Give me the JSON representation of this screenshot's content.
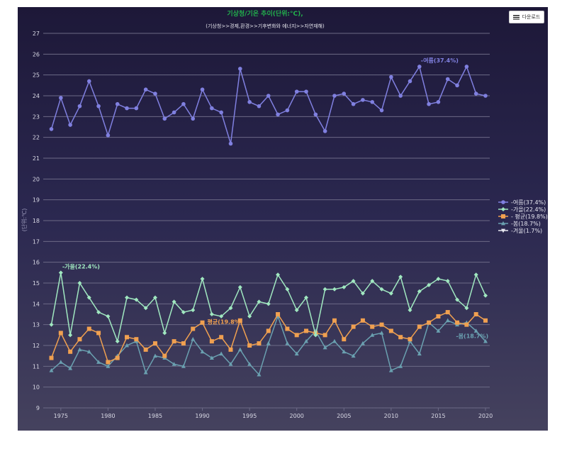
{
  "toolbar": {
    "download_label": "다운로드",
    "download_icon": "menu-icon"
  },
  "chart_data": {
    "type": "line",
    "title": "기상청/기온 추이(단위:°C),",
    "subtitle": "(기상청>>경제,환경>>기후변화와 에너지>>자연재해)",
    "xlabel": "",
    "ylabel": "(단위:℃)",
    "ylim": [
      9,
      27
    ],
    "yticks": [
      "9",
      "10",
      "11",
      "12",
      "13",
      "14",
      "15",
      "16",
      "17",
      "18",
      "19",
      "20",
      "21",
      "22",
      "23",
      "24",
      "25",
      "26",
      "27"
    ],
    "xticks": [
      "1975",
      "1980",
      "1985",
      "1990",
      "1995",
      "2000",
      "2005",
      "2010",
      "2015",
      "2020"
    ],
    "grid": true,
    "legend_position": "right",
    "x": [
      1974,
      1975,
      1976,
      1977,
      1978,
      1979,
      1980,
      1981,
      1982,
      1983,
      1984,
      1985,
      1986,
      1987,
      1988,
      1989,
      1990,
      1991,
      1992,
      1993,
      1994,
      1995,
      1996,
      1997,
      1998,
      1999,
      2000,
      2001,
      2002,
      2003,
      2004,
      2005,
      2006,
      2007,
      2008,
      2009,
      2010,
      2011,
      2012,
      2013,
      2014,
      2015,
      2016,
      2017,
      2018,
      2019,
      2020
    ],
    "series": [
      {
        "name": "-여름(37.4%)",
        "color": "#8080e0",
        "marker": "circle",
        "label": "-여름(37.4%)",
        "label_at": 2013,
        "values": [
          22.4,
          23.9,
          22.6,
          23.5,
          24.7,
          23.5,
          22.1,
          23.6,
          23.4,
          23.4,
          24.3,
          24.1,
          22.9,
          23.2,
          23.6,
          22.9,
          24.3,
          23.4,
          23.2,
          21.7,
          25.3,
          23.7,
          23.5,
          24.0,
          23.1,
          23.3,
          24.2,
          24.2,
          23.1,
          22.3,
          24.0,
          24.1,
          23.6,
          23.8,
          23.7,
          23.3,
          24.9,
          24.0,
          24.7,
          25.4,
          23.6,
          23.7,
          24.8,
          24.5,
          25.4,
          24.1,
          24.0
        ]
      },
      {
        "name": "-가을(22.4%)",
        "color": "#a0e8c0",
        "marker": "diamond",
        "label": "-가을(22.4%)",
        "label_at": 1975,
        "values": [
          13.0,
          15.5,
          12.5,
          15.0,
          14.3,
          13.6,
          13.4,
          12.2,
          14.3,
          14.2,
          13.8,
          14.3,
          12.6,
          14.1,
          13.6,
          13.7,
          15.2,
          13.5,
          13.4,
          13.8,
          14.8,
          13.4,
          14.1,
          14.0,
          15.4,
          14.7,
          13.7,
          14.3,
          12.5,
          14.7,
          14.7,
          14.8,
          15.1,
          14.5,
          15.1,
          14.7,
          14.5,
          15.3,
          13.7,
          14.6,
          14.9,
          15.2,
          15.1,
          14.2,
          13.8,
          15.4,
          14.4
        ]
      },
      {
        "name": "- 평균(19.8%)",
        "color": "#f0a050",
        "marker": "square",
        "label": "평균(19.8%)",
        "label_at": 1990,
        "values": [
          11.4,
          12.6,
          11.7,
          12.3,
          12.8,
          12.6,
          11.2,
          11.4,
          12.4,
          12.3,
          11.8,
          12.1,
          11.5,
          12.2,
          12.1,
          12.8,
          13.1,
          12.2,
          12.4,
          11.8,
          13.2,
          12.0,
          12.1,
          12.7,
          13.5,
          12.8,
          12.5,
          12.7,
          12.6,
          12.5,
          13.2,
          12.3,
          12.9,
          13.2,
          12.9,
          13.0,
          12.7,
          12.4,
          12.3,
          12.9,
          13.1,
          13.4,
          13.6,
          13.1,
          13.0,
          13.5,
          13.2
        ]
      },
      {
        "name": "-봄(18.7%)",
        "color": "#6aa0b0",
        "marker": "triangle",
        "label": "-봄(18.7%)",
        "label_at": 2018,
        "values": [
          10.8,
          11.2,
          10.9,
          11.8,
          11.7,
          11.2,
          11.0,
          11.5,
          12.0,
          12.2,
          10.7,
          11.5,
          11.4,
          11.1,
          11.0,
          12.3,
          11.7,
          11.4,
          11.6,
          11.1,
          11.8,
          11.1,
          10.6,
          12.1,
          13.4,
          12.1,
          11.6,
          12.2,
          12.7,
          11.9,
          12.2,
          11.7,
          11.5,
          12.1,
          12.5,
          12.6,
          10.8,
          11.0,
          12.2,
          11.6,
          13.1,
          12.7,
          13.2,
          13.0,
          13.1,
          12.7,
          12.2
        ]
      },
      {
        "name": "-겨울(1.7%)",
        "color": "#e8e8f0",
        "marker": "triangle-down",
        "values": []
      }
    ]
  }
}
